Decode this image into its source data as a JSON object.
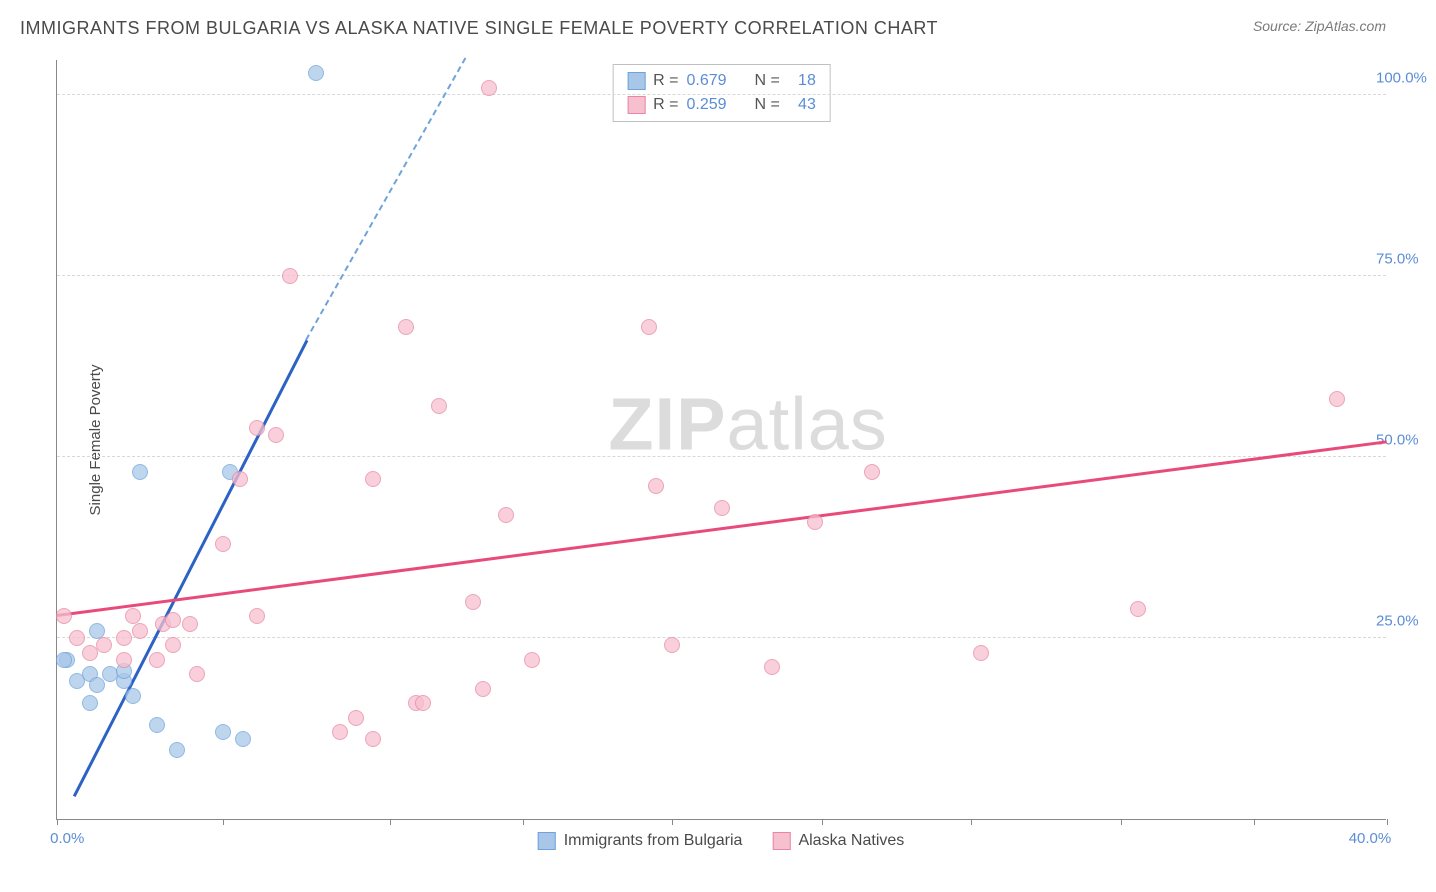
{
  "header": {
    "title": "IMMIGRANTS FROM BULGARIA VS ALASKA NATIVE SINGLE FEMALE POVERTY CORRELATION CHART",
    "source": "Source: ZipAtlas.com"
  },
  "watermark": {
    "zip": "ZIP",
    "atlas": "atlas"
  },
  "chart": {
    "type": "scatter",
    "ylabel": "Single Female Poverty",
    "xlim": [
      0,
      40
    ],
    "ylim": [
      0,
      105
    ],
    "xticks": [
      0,
      5,
      10,
      14,
      18.5,
      23,
      27.5,
      32,
      36,
      40
    ],
    "xtick_labels_visible": {
      "0": "0.0%",
      "40": "40.0%"
    },
    "yticks": [
      25,
      50,
      75,
      100
    ],
    "ytick_labels": [
      "25.0%",
      "50.0%",
      "75.0%",
      "100.0%"
    ],
    "grid_color": "#d8d8d8",
    "background_color": "#ffffff",
    "series": [
      {
        "name": "Immigrants from Bulgaria",
        "color_fill": "#a8c7e8",
        "color_stroke": "#6fa3da",
        "marker_radius": 8,
        "marker_opacity": 0.75,
        "R": "0.679",
        "N": "18",
        "trend": {
          "x1": 0.5,
          "y1": 3,
          "x2": 7.5,
          "y2": 66,
          "color": "#2b62c4",
          "width": 2.5
        },
        "trend_dash": {
          "x1": 7.5,
          "y1": 66,
          "x2": 12.3,
          "y2": 105,
          "color": "#6fa3da"
        },
        "points": [
          [
            0.3,
            22
          ],
          [
            0.2,
            22
          ],
          [
            0.6,
            19
          ],
          [
            1.0,
            20
          ],
          [
            1.2,
            18.5
          ],
          [
            1.6,
            20
          ],
          [
            2.0,
            19
          ],
          [
            2.3,
            17
          ],
          [
            2.0,
            20.5
          ],
          [
            1.0,
            16
          ],
          [
            3.0,
            13
          ],
          [
            3.6,
            9.5
          ],
          [
            5.0,
            12
          ],
          [
            2.5,
            48
          ],
          [
            5.2,
            48
          ],
          [
            5.6,
            11
          ],
          [
            1.2,
            26
          ],
          [
            7.8,
            103
          ]
        ]
      },
      {
        "name": "Alaska Natives",
        "color_fill": "#f6c0cf",
        "color_stroke": "#e886a3",
        "marker_radius": 8,
        "marker_opacity": 0.75,
        "R": "0.259",
        "N": "43",
        "trend": {
          "x1": 0,
          "y1": 28,
          "x2": 40,
          "y2": 52,
          "color": "#e84a7a",
          "width": 2.5
        },
        "points": [
          [
            0.2,
            28
          ],
          [
            0.6,
            25
          ],
          [
            1.0,
            23
          ],
          [
            1.4,
            24
          ],
          [
            2.0,
            22
          ],
          [
            2.3,
            28
          ],
          [
            2.0,
            25
          ],
          [
            2.5,
            26
          ],
          [
            3.0,
            22
          ],
          [
            3.2,
            27
          ],
          [
            3.5,
            24
          ],
          [
            3.5,
            27.5
          ],
          [
            4.0,
            27
          ],
          [
            4.2,
            20
          ],
          [
            5.0,
            38
          ],
          [
            5.5,
            47
          ],
          [
            6.0,
            54
          ],
          [
            6.6,
            53
          ],
          [
            7.0,
            75
          ],
          [
            8.5,
            12
          ],
          [
            9.0,
            14
          ],
          [
            9.5,
            11
          ],
          [
            9.5,
            47
          ],
          [
            10.5,
            68
          ],
          [
            10.8,
            16
          ],
          [
            11.0,
            16
          ],
          [
            11.5,
            57
          ],
          [
            12.5,
            30
          ],
          [
            12.8,
            18
          ],
          [
            13.0,
            101
          ],
          [
            13.5,
            42
          ],
          [
            14.3,
            22
          ],
          [
            17.8,
            68
          ],
          [
            18.0,
            46
          ],
          [
            18.5,
            24
          ],
          [
            20.0,
            43
          ],
          [
            21.5,
            21
          ],
          [
            22.8,
            41
          ],
          [
            24.5,
            48
          ],
          [
            27.8,
            23
          ],
          [
            32.5,
            29
          ],
          [
            38.5,
            58
          ],
          [
            6.0,
            28
          ]
        ]
      }
    ],
    "legend_bottom": [
      {
        "label": "Immigrants from Bulgaria",
        "fill": "#a8c7e8",
        "stroke": "#6fa3da"
      },
      {
        "label": "Alaska Natives",
        "fill": "#f6c0cf",
        "stroke": "#e886a3"
      }
    ]
  }
}
